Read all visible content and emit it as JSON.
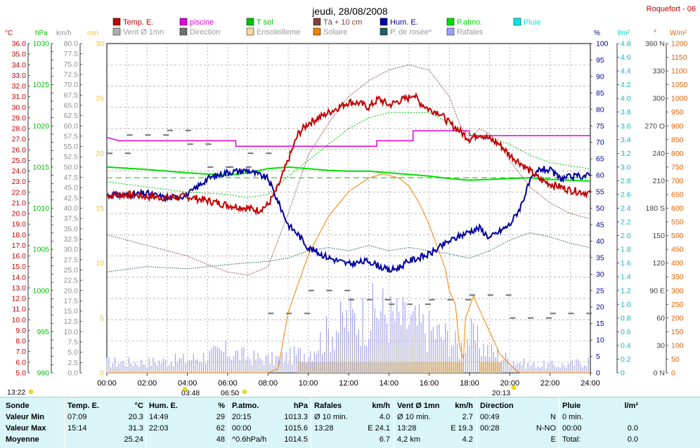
{
  "chart_data": {
    "type": "line",
    "title": "jeudi, 28/08/2008",
    "station": "Roquefort - 06",
    "xlabel": "",
    "x_ticks": [
      "00:00",
      "02:00",
      "04:00",
      "06:00",
      "08:00",
      "10:00",
      "12:00",
      "14:00",
      "16:00",
      "18:00",
      "20:00",
      "22:00",
      "24:00"
    ],
    "legend": [
      {
        "name": "Temp. E.",
        "color": "#c00000"
      },
      {
        "name": "piscine",
        "color": "#e000e0"
      },
      {
        "name": "T sol",
        "color": "#00c000"
      },
      {
        "name": "Tà + 10 cm",
        "color": "#804040"
      },
      {
        "name": "Hum. E.",
        "color": "#0000a0"
      },
      {
        "name": "P.atmo.",
        "color": "#00e000"
      },
      {
        "name": "Pluie",
        "color": "#00e8e8"
      },
      {
        "name": "Vent Ø 1mn",
        "color": "#b0b0b0"
      },
      {
        "name": "Direction",
        "color": "#707070"
      },
      {
        "name": "Ensoleilleme",
        "color": "#f8d8a0"
      },
      {
        "name": "Solaire",
        "color": "#f08000"
      },
      {
        "name": "P. de rosée*",
        "color": "#206060"
      },
      {
        "name": "Rafales",
        "color": "#a0a0f8"
      }
    ],
    "axes": {
      "temp": {
        "unit": "°C",
        "min": 5.0,
        "max": 36.0,
        "step": 1.0,
        "color": "#c00000"
      },
      "pressure": {
        "unit": "hPa",
        "min": 990,
        "max": 1030,
        "step": 5,
        "color": "#00c000"
      },
      "wind": {
        "unit": "km/h",
        "min": 0,
        "max": 80,
        "step": 2.5,
        "color": "#909090"
      },
      "sunshine": {
        "unit": "min",
        "min": 0,
        "max": 30,
        "step": 5,
        "color": "#f0c040"
      },
      "humidity": {
        "unit": "%",
        "min": 0,
        "max": 100,
        "step": 5,
        "color": "#0000a0"
      },
      "rain": {
        "unit": "l/m²",
        "min": 0,
        "max": 4.8,
        "step": 0.2,
        "color": "#00c0c0"
      },
      "direction": {
        "unit": "°",
        "ticks": [
          "0 N",
          "30",
          "60",
          "90 E",
          "120",
          "150",
          "180 S",
          "210",
          "240",
          "270 O",
          "300",
          "330",
          "360 N"
        ],
        "color": "#404040"
      },
      "solar": {
        "unit": "W/m²",
        "min": 0,
        "max": 1200,
        "step": 50,
        "color": "#e06000"
      }
    },
    "series": {
      "temp": [
        [
          0,
          21.7
        ],
        [
          1,
          21.8
        ],
        [
          2,
          21.6
        ],
        [
          3,
          21.5
        ],
        [
          4,
          21.6
        ],
        [
          5,
          21.2
        ],
        [
          6,
          20.8
        ],
        [
          7,
          20.5
        ],
        [
          7.5,
          20.3
        ],
        [
          8,
          20.8
        ],
        [
          8.5,
          22.5
        ],
        [
          9,
          25.0
        ],
        [
          9.5,
          27.5
        ],
        [
          10,
          28.5
        ],
        [
          10.5,
          29.0
        ],
        [
          11,
          29.5
        ],
        [
          11.5,
          30.0
        ],
        [
          12,
          30.5
        ],
        [
          12.5,
          30.4
        ],
        [
          13,
          30.0
        ],
        [
          13.5,
          30.8
        ],
        [
          14,
          30.2
        ],
        [
          14.5,
          30.6
        ],
        [
          15,
          30.9
        ],
        [
          15.2,
          31.3
        ],
        [
          15.5,
          30.5
        ],
        [
          16,
          29.8
        ],
        [
          16.5,
          29.5
        ],
        [
          17,
          28.5
        ],
        [
          17.5,
          27.8
        ],
        [
          18,
          27.0
        ],
        [
          18.5,
          27.5
        ],
        [
          19,
          27.0
        ],
        [
          19.5,
          26.5
        ],
        [
          20,
          25.5
        ],
        [
          20.5,
          24.8
        ],
        [
          21,
          24.0
        ],
        [
          21.5,
          23.2
        ],
        [
          22,
          22.8
        ],
        [
          22.5,
          22.5
        ],
        [
          23,
          22.2
        ],
        [
          24,
          21.9
        ]
      ],
      "humidity": [
        [
          0,
          54
        ],
        [
          1,
          54
        ],
        [
          2,
          54.5
        ],
        [
          3,
          53
        ],
        [
          4,
          54
        ],
        [
          5,
          59
        ],
        [
          6,
          61
        ],
        [
          7,
          61.5
        ],
        [
          8,
          59
        ],
        [
          8.5,
          52
        ],
        [
          9,
          45
        ],
        [
          9.5,
          42
        ],
        [
          10,
          38
        ],
        [
          11,
          35
        ],
        [
          12,
          33
        ],
        [
          13,
          34
        ],
        [
          14,
          31
        ],
        [
          14.5,
          32
        ],
        [
          15,
          34
        ],
        [
          15.5,
          35
        ],
        [
          16,
          36
        ],
        [
          17,
          40
        ],
        [
          18,
          43
        ],
        [
          18.5,
          44
        ],
        [
          19,
          41
        ],
        [
          20,
          45
        ],
        [
          20.5,
          50
        ],
        [
          21,
          58
        ],
        [
          21.5,
          62
        ],
        [
          22,
          61.5
        ],
        [
          22.5,
          59
        ],
        [
          23,
          59.5
        ],
        [
          24,
          60
        ]
      ],
      "pressure": [
        [
          0,
          1015.0
        ],
        [
          2,
          1014.7
        ],
        [
          4,
          1014.3
        ],
        [
          6,
          1014.0
        ],
        [
          7,
          1014.3
        ],
        [
          8,
          1014.8
        ],
        [
          9,
          1015.0
        ],
        [
          10,
          1014.8
        ],
        [
          11,
          1014.6
        ],
        [
          12,
          1014.5
        ],
        [
          13,
          1014.5
        ],
        [
          14,
          1014.3
        ],
        [
          15,
          1014.1
        ],
        [
          16,
          1013.9
        ],
        [
          17,
          1013.6
        ],
        [
          18,
          1013.4
        ],
        [
          19,
          1013.5
        ],
        [
          20,
          1013.6
        ],
        [
          21,
          1013.7
        ],
        [
          22,
          1013.5
        ],
        [
          23,
          1013.4
        ],
        [
          24,
          1013.3
        ]
      ],
      "pool": [
        [
          0,
          71.5
        ],
        [
          0.6,
          70.5
        ],
        [
          6.4,
          70.5
        ],
        [
          6.4,
          68.8
        ],
        [
          13.4,
          68.8
        ],
        [
          13.4,
          70.5
        ],
        [
          15.2,
          70.5
        ],
        [
          15.2,
          73.5
        ],
        [
          18,
          73.5
        ],
        [
          18,
          72.0
        ],
        [
          24,
          72.0
        ]
      ],
      "t10cm": [
        [
          0,
          18.0
        ],
        [
          1,
          17.5
        ],
        [
          2,
          17.0
        ],
        [
          3,
          16.5
        ],
        [
          4,
          16.0
        ],
        [
          5,
          15.2
        ],
        [
          6,
          14.5
        ],
        [
          7,
          14.2
        ],
        [
          8,
          15.0
        ],
        [
          9,
          20.0
        ],
        [
          10,
          25.5
        ],
        [
          11,
          28.5
        ],
        [
          12,
          31.0
        ],
        [
          13,
          32.5
        ],
        [
          14,
          33.5
        ],
        [
          15,
          34.0
        ],
        [
          16,
          33.5
        ],
        [
          17,
          31.0
        ],
        [
          17.5,
          28.5
        ],
        [
          18,
          27.0
        ],
        [
          18.5,
          28.0
        ],
        [
          19,
          27.5
        ],
        [
          19.5,
          26.5
        ],
        [
          20,
          25.0
        ],
        [
          21,
          22.5
        ],
        [
          22,
          21.0
        ],
        [
          23,
          20.0
        ],
        [
          24,
          19.5
        ]
      ],
      "tsol": [
        [
          0,
          23.0
        ],
        [
          2,
          22.5
        ],
        [
          4,
          22.0
        ],
        [
          6,
          21.8
        ],
        [
          7,
          21.5
        ],
        [
          8,
          21.8
        ],
        [
          9,
          23.5
        ],
        [
          10,
          25.0
        ],
        [
          11,
          26.5
        ],
        [
          12,
          28.0
        ],
        [
          13,
          29.0
        ],
        [
          14,
          29.5
        ],
        [
          15,
          29.5
        ],
        [
          16,
          29.5
        ],
        [
          17,
          28.5
        ],
        [
          18,
          27.5
        ],
        [
          19,
          27.2
        ],
        [
          20,
          26.5
        ],
        [
          21,
          25.5
        ],
        [
          22,
          24.8
        ],
        [
          23,
          24.5
        ],
        [
          24,
          24.2
        ]
      ],
      "dewpoint": [
        [
          0,
          14.5
        ],
        [
          2,
          15.0
        ],
        [
          4,
          14.8
        ],
        [
          6,
          15.2
        ],
        [
          8,
          15.5
        ],
        [
          9,
          15.8
        ],
        [
          10,
          16.5
        ],
        [
          11,
          16.8
        ],
        [
          12,
          16.5
        ],
        [
          13,
          17.0
        ],
        [
          14,
          16.5
        ],
        [
          15,
          16.8
        ],
        [
          16,
          16.5
        ],
        [
          17,
          16.2
        ],
        [
          18,
          15.8
        ],
        [
          19,
          16.5
        ],
        [
          20,
          17.5
        ],
        [
          21,
          18.2
        ],
        [
          22,
          17.8
        ],
        [
          23,
          17.2
        ],
        [
          24,
          16.8
        ]
      ],
      "solar": [
        [
          0,
          0
        ],
        [
          8,
          0
        ],
        [
          8.5,
          15
        ],
        [
          9,
          220
        ],
        [
          10,
          430
        ],
        [
          11,
          570
        ],
        [
          12,
          660
        ],
        [
          13,
          710
        ],
        [
          13.7,
          725
        ],
        [
          14.5,
          710
        ],
        [
          15,
          680
        ],
        [
          15.5,
          620
        ],
        [
          16,
          540
        ],
        [
          16.5,
          440
        ],
        [
          16.8,
          380
        ],
        [
          17,
          300
        ],
        [
          17.3,
          250
        ],
        [
          17.5,
          100
        ],
        [
          17.7,
          50
        ],
        [
          17.8,
          200
        ],
        [
          18.2,
          280
        ],
        [
          18.5,
          230
        ],
        [
          19,
          150
        ],
        [
          19.5,
          70
        ],
        [
          20,
          30
        ],
        [
          20.3,
          10
        ],
        [
          20.5,
          0
        ],
        [
          24,
          0
        ]
      ],
      "gust_peak": [
        [
          0,
          4
        ],
        [
          2,
          4
        ],
        [
          4,
          5
        ],
        [
          6,
          8
        ],
        [
          7,
          6
        ],
        [
          8,
          5
        ],
        [
          9,
          6
        ],
        [
          10,
          8
        ],
        [
          11,
          15
        ],
        [
          12,
          20
        ],
        [
          13,
          21
        ],
        [
          13.5,
          24
        ],
        [
          14,
          21
        ],
        [
          15,
          19
        ],
        [
          16,
          16
        ],
        [
          17,
          13
        ],
        [
          17.5,
          9
        ],
        [
          18,
          14
        ],
        [
          19,
          8
        ],
        [
          20,
          5
        ],
        [
          21,
          3
        ],
        [
          22,
          3
        ],
        [
          23,
          3
        ],
        [
          24,
          5
        ]
      ],
      "direction_deg": [
        [
          0,
          240
        ],
        [
          1,
          260
        ],
        [
          3,
          265
        ],
        [
          4,
          250
        ],
        [
          5,
          225
        ],
        [
          6,
          225
        ],
        [
          7,
          240
        ],
        [
          8,
          65
        ],
        [
          10,
          90
        ],
        [
          12,
          80
        ],
        [
          14,
          75
        ],
        [
          16,
          80
        ],
        [
          18,
          85
        ],
        [
          20,
          60
        ],
        [
          22,
          65
        ],
        [
          24,
          70
        ]
      ],
      "sunshine_blocks": [
        [
          9.5,
          17.7
        ],
        [
          18.5,
          19.6
        ]
      ]
    },
    "summary": {
      "columns": [
        {
          "header": "Sonde",
          "rows": [
            "Valeur Min",
            "Valeur Max",
            "Moyenne"
          ]
        },
        {
          "header": "Temp. E.",
          "unit": "°C",
          "rows": [
            [
              "07:09",
              "20.3"
            ],
            [
              "15:14",
              "31.3"
            ],
            [
              "",
              "25.24"
            ]
          ]
        },
        {
          "header": "Hum. E.",
          "unit": "%",
          "rows": [
            [
              "14:49",
              "29"
            ],
            [
              "22:03",
              "62"
            ],
            [
              "",
              "48"
            ]
          ]
        },
        {
          "header": "P.atmo.",
          "unit": "hPa",
          "rows": [
            [
              "20:15",
              "1013.3"
            ],
            [
              "00:00",
              "1015.6"
            ],
            [
              "^0.6hPa/h",
              "1014.5"
            ]
          ]
        },
        {
          "header": "Rafales",
          "unit": "km/h",
          "rows": [
            [
              "Ø 10 min.",
              "4.0"
            ],
            [
              "13:28",
              "E 24.1"
            ],
            [
              "",
              "6.7"
            ]
          ]
        },
        {
          "header": "Vent Ø 1mn",
          "unit": "km/h",
          "rows": [
            [
              "Ø 10 min.",
              "2.7"
            ],
            [
              "13:28",
              "E 19.3"
            ],
            [
              "4,2 km",
              "4.2"
            ]
          ]
        },
        {
          "header": "Direction",
          "unit": "",
          "rows": [
            [
              "00:49",
              "N"
            ],
            [
              "00:28",
              "N-NO"
            ],
            [
              "",
              "E"
            ]
          ]
        },
        {
          "header": "Pluie",
          "unit": "l/m²",
          "rows": [
            [
              "0 min.",
              ""
            ],
            [
              "00:00",
              "0.0"
            ],
            [
              "Total:",
              "0.0"
            ]
          ]
        }
      ]
    },
    "times": {
      "left": "13:22",
      "sunrise": "03:48",
      "dawn": "06:50",
      "sunset": "20:13"
    }
  }
}
